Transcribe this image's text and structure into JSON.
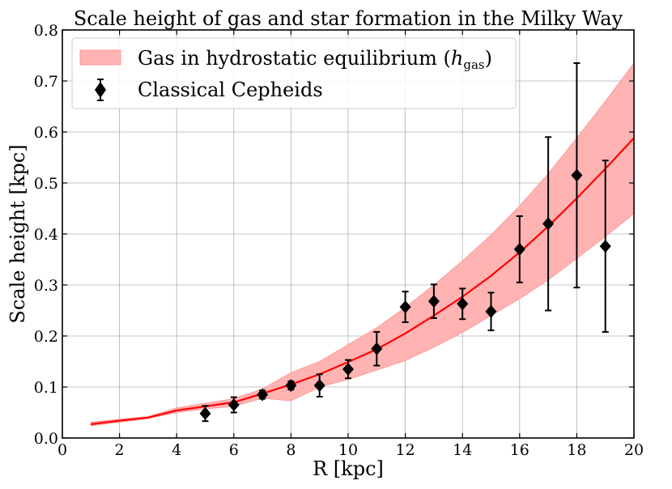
{
  "chart_data": {
    "type": "line",
    "title": "Scale height of gas and star formation in the Milky Way",
    "xlabel": "R [kpc]",
    "ylabel": "Scale height [kpc]",
    "xlim": [
      0,
      20
    ],
    "ylim": [
      0,
      0.8
    ],
    "xticks": [
      0,
      2,
      4,
      6,
      8,
      10,
      12,
      14,
      16,
      18,
      20
    ],
    "xtick_labels": [
      "0",
      "2",
      "4",
      "6",
      "8",
      "10",
      "12",
      "14",
      "16",
      "18",
      "20"
    ],
    "yticks": [
      0.0,
      0.1,
      0.2,
      0.3,
      0.4,
      0.5,
      0.6,
      0.7,
      0.8
    ],
    "ytick_labels": [
      "0.0",
      "0.1",
      "0.2",
      "0.3",
      "0.4",
      "0.5",
      "0.6",
      "0.7",
      "0.8"
    ],
    "grid": true,
    "legend_position": "top-left",
    "legend": {
      "band_label_prefix": "Gas in hydrostatic equilibrium (",
      "band_label_symbol": "h",
      "band_label_subscript": "gas",
      "band_label_suffix": ")",
      "points_label": "Classical Cepheids"
    },
    "series": [
      {
        "name": "Gas in hydrostatic equilibrium (h_gas)",
        "kind": "band_with_line",
        "color": "#ff0000",
        "fill_color": "#ffb3b3",
        "x": [
          1,
          2,
          3,
          4,
          5,
          6,
          7,
          8,
          9,
          10,
          11,
          12,
          13,
          14,
          15,
          16,
          17,
          18,
          19,
          20
        ],
        "y": [
          0.027,
          0.034,
          0.04,
          0.054,
          0.062,
          0.07,
          0.087,
          0.105,
          0.125,
          0.149,
          0.174,
          0.205,
          0.24,
          0.277,
          0.318,
          0.364,
          0.415,
          0.47,
          0.528,
          0.588
        ],
        "lower": [
          0.024,
          0.031,
          0.038,
          0.05,
          0.057,
          0.062,
          0.078,
          0.073,
          0.1,
          0.115,
          0.133,
          0.152,
          0.178,
          0.207,
          0.24,
          0.273,
          0.31,
          0.352,
          0.395,
          0.44
        ],
        "upper": [
          0.031,
          0.037,
          0.042,
          0.059,
          0.068,
          0.077,
          0.096,
          0.128,
          0.15,
          0.183,
          0.216,
          0.256,
          0.3,
          0.347,
          0.398,
          0.455,
          0.518,
          0.588,
          0.66,
          0.735
        ]
      },
      {
        "name": "Classical Cepheids",
        "kind": "errorbar",
        "color": "#000000",
        "x": [
          5,
          6,
          7,
          8,
          9,
          10,
          11,
          12,
          13,
          14,
          15,
          16,
          17,
          18,
          19
        ],
        "y": [
          0.048,
          0.065,
          0.085,
          0.103,
          0.103,
          0.135,
          0.175,
          0.257,
          0.268,
          0.263,
          0.248,
          0.37,
          0.42,
          0.515,
          0.376
        ],
        "yerr": [
          0.015,
          0.015,
          0.008,
          0.008,
          0.022,
          0.018,
          0.033,
          0.03,
          0.033,
          0.03,
          0.037,
          0.065,
          0.17,
          0.22,
          0.168
        ]
      }
    ]
  }
}
